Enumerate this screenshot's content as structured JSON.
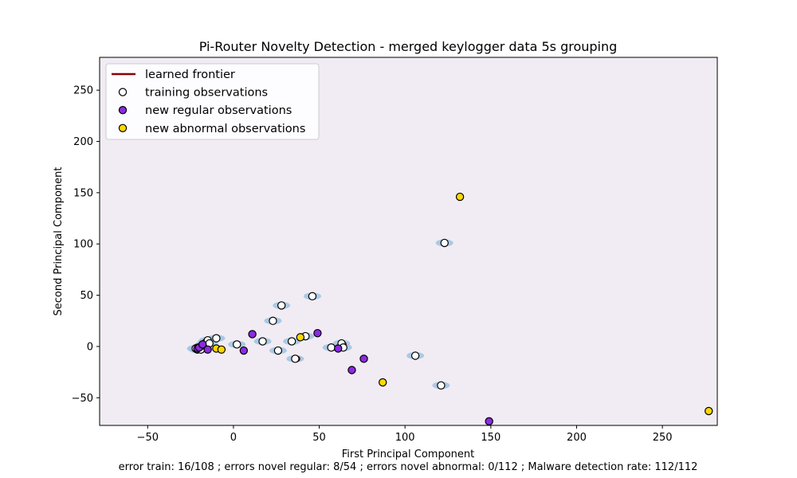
{
  "chart_data": {
    "type": "scatter",
    "title": "Pi-Router Novelty Detection - merged keylogger data 5s grouping",
    "xlabel": "First Principal Component",
    "ylabel": "Second Principal Component",
    "footer": "error train: 16/108 ; errors novel regular: 8/54 ; errors novel abnormal: 0/112 ; Malware detection rate: 112/112",
    "xlim": [
      -78,
      282
    ],
    "ylim": [
      -77,
      282
    ],
    "xticks": [
      -50,
      0,
      50,
      100,
      150,
      200,
      250
    ],
    "yticks": [
      -50,
      0,
      50,
      100,
      150,
      200,
      250
    ],
    "grid": false,
    "legend_position": "top-left",
    "colors": {
      "background": "#f1ecf3",
      "frontier": "#8b0000",
      "frontier_fill": "#9fc3e0",
      "training": "#ffffff",
      "regular": "#8a2be2",
      "abnormal": "#ffd700"
    },
    "legend": [
      {
        "label": "learned frontier",
        "kind": "line"
      },
      {
        "label": "training observations",
        "kind": "training"
      },
      {
        "label": "new regular observations",
        "kind": "regular"
      },
      {
        "label": "new abnormal observations",
        "kind": "abnormal"
      }
    ],
    "frontier": [
      {
        "x": -19,
        "y": 0,
        "rx": 4,
        "ry": 2.5
      },
      {
        "x": -15,
        "y": 4,
        "rx": 2.5,
        "ry": 3
      },
      {
        "x": 37,
        "y": -12,
        "rx": 1.5,
        "ry": 1.5
      },
      {
        "x": 64,
        "y": 2,
        "rx": 1.5,
        "ry": 1.5
      }
    ],
    "training": [
      {
        "x": -22,
        "y": -2
      },
      {
        "x": -21,
        "y": -3
      },
      {
        "x": -20,
        "y": -1
      },
      {
        "x": -19,
        "y": -3
      },
      {
        "x": -18,
        "y": 1
      },
      {
        "x": -17,
        "y": 2
      },
      {
        "x": -16,
        "y": 4
      },
      {
        "x": -15,
        "y": 6
      },
      {
        "x": -14,
        "y": 3
      },
      {
        "x": -10,
        "y": 8
      },
      {
        "x": 2,
        "y": 2
      },
      {
        "x": 17,
        "y": 5
      },
      {
        "x": 23,
        "y": 25
      },
      {
        "x": 26,
        "y": -4
      },
      {
        "x": 28,
        "y": 40
      },
      {
        "x": 34,
        "y": 5
      },
      {
        "x": 36,
        "y": -12
      },
      {
        "x": 42,
        "y": 10
      },
      {
        "x": 46,
        "y": 49
      },
      {
        "x": 57,
        "y": -1
      },
      {
        "x": 63,
        "y": 3
      },
      {
        "x": 64,
        "y": -1
      },
      {
        "x": 106,
        "y": -9
      },
      {
        "x": 121,
        "y": -38
      },
      {
        "x": 123,
        "y": 101
      }
    ],
    "regular": [
      {
        "x": -21,
        "y": -2
      },
      {
        "x": -20,
        "y": -1
      },
      {
        "x": -18,
        "y": 2
      },
      {
        "x": -15,
        "y": -3
      },
      {
        "x": 6,
        "y": -4
      },
      {
        "x": 11,
        "y": 12
      },
      {
        "x": 49,
        "y": 13
      },
      {
        "x": 61,
        "y": -2
      },
      {
        "x": 69,
        "y": -23
      },
      {
        "x": 76,
        "y": -12
      },
      {
        "x": 149,
        "y": -73
      }
    ],
    "abnormal": [
      {
        "x": -10,
        "y": -2
      },
      {
        "x": -7,
        "y": -3
      },
      {
        "x": 39,
        "y": 9
      },
      {
        "x": 87,
        "y": -35
      },
      {
        "x": 132,
        "y": 146
      },
      {
        "x": 277,
        "y": -63
      }
    ]
  }
}
